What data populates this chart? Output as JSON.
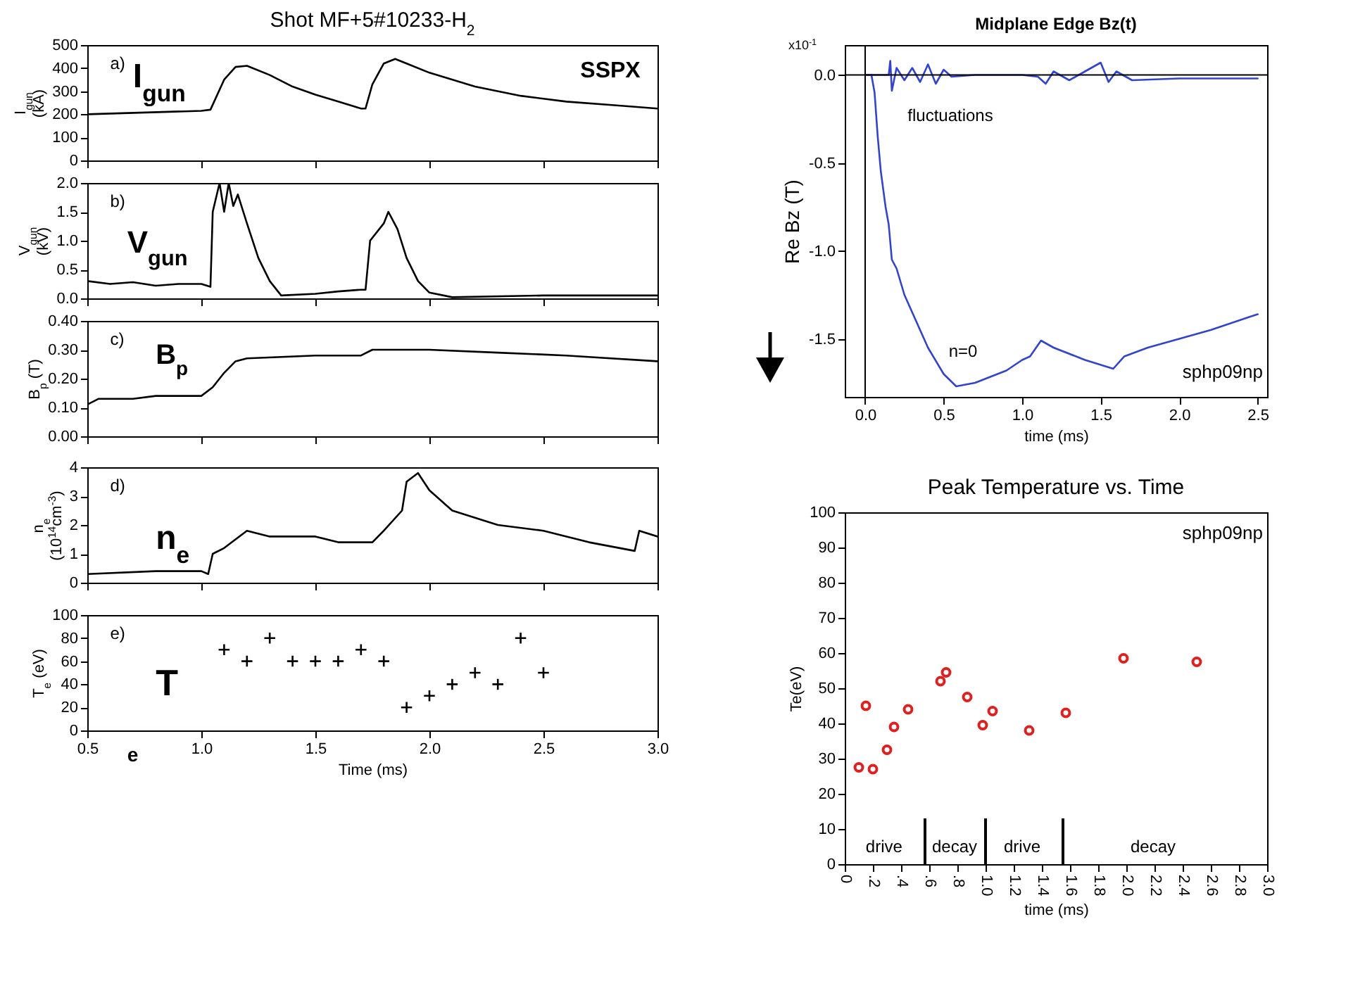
{
  "chart_data": [
    {
      "type": "line",
      "title": "Shot MF+5#10233-H$_{2}$",
      "ylabel": "I$_{gun}$ (kA)",
      "annotations": [
        "a)",
        "I$_{gun}$",
        "SSPX"
      ],
      "xlim": [
        0.5,
        3.0
      ],
      "xticks": [
        0.5,
        1,
        1.5,
        2,
        2.5,
        3
      ],
      "ylim": [
        0,
        500
      ],
      "yticks": [
        0,
        100,
        200,
        300,
        400,
        500
      ],
      "tick_labels": "y",
      "series": [
        {
          "color": "#000000",
          "x": [
            0.5,
            1.0,
            1.04,
            1.1,
            1.15,
            1.2,
            1.3,
            1.4,
            1.5,
            1.6,
            1.7,
            1.72,
            1.75,
            1.8,
            1.85,
            1.9,
            2.0,
            2.2,
            2.4,
            2.6,
            2.8,
            3.0
          ],
          "values": [
            200,
            215,
            220,
            350,
            405,
            410,
            370,
            320,
            285,
            255,
            225,
            225,
            330,
            420,
            440,
            420,
            380,
            320,
            280,
            255,
            240,
            225
          ]
        }
      ]
    },
    {
      "type": "line",
      "ylabel": "V$_{gun}$ (kV)",
      "annotations": [
        "b)",
        "V$_{gun}$"
      ],
      "xlim": [
        0.5,
        3.0
      ],
      "xticks": [
        0.5,
        1,
        1.5,
        2,
        2.5,
        3
      ],
      "ylim": [
        0,
        2
      ],
      "yticks": [
        {
          "value": 0,
          "label": "0.0"
        },
        0.5,
        {
          "value": 1,
          "label": "1.0"
        },
        1.5,
        {
          "value": 2,
          "label": "2.0"
        }
      ],
      "tick_labels": "y",
      "series": [
        {
          "color": "#000000",
          "x": [
            0.5,
            0.6,
            0.7,
            0.8,
            0.9,
            1.0,
            1.04,
            1.05,
            1.08,
            1.1,
            1.12,
            1.14,
            1.16,
            1.2,
            1.25,
            1.3,
            1.35,
            1.5,
            1.6,
            1.7,
            1.72,
            1.74,
            1.8,
            1.82,
            1.86,
            1.9,
            1.95,
            2.0,
            2.1,
            2.5,
            3.0
          ],
          "values": [
            0.3,
            0.25,
            0.28,
            0.22,
            0.25,
            0.25,
            0.2,
            1.5,
            2.0,
            1.5,
            2.0,
            1.6,
            1.8,
            1.3,
            0.7,
            0.3,
            0.05,
            0.08,
            0.12,
            0.15,
            0.15,
            1.0,
            1.3,
            1.5,
            1.2,
            0.7,
            0.3,
            0.1,
            0.02,
            0.05,
            0.05
          ]
        }
      ]
    },
    {
      "type": "line",
      "ylabel": "B$_{p}$ (T)",
      "annotations": [
        "c)",
        "B$_{p}$"
      ],
      "xlim": [
        0.5,
        3.0
      ],
      "xticks": [
        0.5,
        1,
        1.5,
        2,
        2.5,
        3
      ],
      "ylim": [
        0,
        0.4
      ],
      "yticks": [
        {
          "value": 0,
          "label": "0.00"
        },
        {
          "value": 0.1,
          "label": "0.10"
        },
        {
          "value": 0.2,
          "label": "0.20"
        },
        {
          "value": 0.3,
          "label": "0.30"
        },
        {
          "value": 0.4,
          "label": "0.40"
        }
      ],
      "tick_labels": "y",
      "series": [
        {
          "color": "#000000",
          "x": [
            0.5,
            0.55,
            0.7,
            0.8,
            1.0,
            1.05,
            1.1,
            1.15,
            1.2,
            1.5,
            1.7,
            1.75,
            2.0,
            2.3,
            2.6,
            3.0
          ],
          "values": [
            0.11,
            0.13,
            0.13,
            0.14,
            0.14,
            0.17,
            0.22,
            0.26,
            0.27,
            0.28,
            0.28,
            0.3,
            0.3,
            0.29,
            0.28,
            0.26
          ]
        }
      ]
    },
    {
      "type": "line",
      "ylabel": "n$_{e}$ (10$^{14}$cm$^{-3}$)",
      "annotations": [
        "d)",
        "n$_{e}$"
      ],
      "xlim": [
        0.5,
        3.0
      ],
      "xticks": [
        0.5,
        1,
        1.5,
        2,
        2.5,
        3
      ],
      "ylim": [
        0,
        4
      ],
      "yticks": [
        0,
        1,
        2,
        3,
        4
      ],
      "tick_labels": "y",
      "series": [
        {
          "color": "#000000",
          "x": [
            0.5,
            0.8,
            1.0,
            1.03,
            1.05,
            1.1,
            1.2,
            1.3,
            1.5,
            1.6,
            1.75,
            1.8,
            1.88,
            1.9,
            1.95,
            2.0,
            2.1,
            2.3,
            2.5,
            2.7,
            2.9,
            2.92,
            3.0
          ],
          "values": [
            0.3,
            0.4,
            0.4,
            0.3,
            1.0,
            1.2,
            1.8,
            1.6,
            1.6,
            1.4,
            1.4,
            1.8,
            2.5,
            3.5,
            3.8,
            3.2,
            2.5,
            2.0,
            1.8,
            1.4,
            1.1,
            1.8,
            1.6
          ]
        }
      ]
    },
    {
      "type": "scatter",
      "xlabel": "Time (ms)",
      "ylabel": "T$_{e}$ (eV)",
      "annotations": [
        "e)",
        "T",
        "e"
      ],
      "marker": "cross",
      "xlim": [
        0.5,
        3.0
      ],
      "xticks": [
        0.5,
        {
          "value": 1,
          "label": "1.0"
        },
        1.5,
        {
          "value": 2,
          "label": "2.0"
        },
        2.5,
        {
          "value": 3,
          "label": "3.0"
        }
      ],
      "ylim": [
        0,
        100
      ],
      "yticks": [
        0,
        20,
        40,
        60,
        80,
        100
      ],
      "series": [
        {
          "color": "#000000",
          "x": [
            1.1,
            1.2,
            1.3,
            1.4,
            1.5,
            1.6,
            1.7,
            1.8,
            1.9,
            2.0,
            2.1,
            2.2,
            2.3,
            2.4,
            2.5
          ],
          "values": [
            70,
            60,
            80,
            60,
            60,
            60,
            70,
            60,
            20,
            30,
            40,
            50,
            40,
            80,
            50
          ]
        }
      ]
    },
    {
      "type": "line",
      "title": "Midplane Edge Bz(t)",
      "xlabel": "time (ms)",
      "ylabel": "Re Bz (T)",
      "annotations": [
        "x10$^{-1}$",
        "sphp09np",
        "fluctuations",
        "n=0"
      ],
      "xlim": [
        -0.13,
        2.56
      ],
      "xticks": [
        {
          "value": 0,
          "label": "0.0"
        },
        0.5,
        {
          "value": 1,
          "label": "1.0"
        },
        1.5,
        {
          "value": 2,
          "label": "2.0"
        },
        2.5
      ],
      "ylim": [
        -1.83,
        0.17
      ],
      "yticks": [
        {
          "value": -1.5,
          "label": "-1.5"
        },
        {
          "value": -1,
          "label": "-1.0"
        },
        -0.5,
        {
          "value": 0,
          "label": "0.0"
        }
      ],
      "ref_lines": [
        {
          "axis": "x",
          "value": 0
        },
        {
          "axis": "y",
          "value": 0
        }
      ],
      "series": [
        {
          "color": "#3344cc",
          "x": [
            0,
            0.04,
            0.06,
            0.08,
            0.1,
            0.13,
            0.15,
            0.17,
            0.2,
            0.25,
            0.3,
            0.4,
            0.5,
            0.58,
            0.7,
            0.9,
            1.0,
            1.05,
            1.12,
            1.2,
            1.4,
            1.58,
            1.65,
            1.8,
            2.0,
            2.2,
            2.5
          ],
          "values": [
            0,
            0,
            -0.1,
            -0.35,
            -0.55,
            -0.75,
            -0.85,
            -1.05,
            -1.1,
            -1.25,
            -1.35,
            -1.55,
            -1.7,
            -1.77,
            -1.75,
            -1.68,
            -1.62,
            -1.6,
            -1.51,
            -1.55,
            -1.62,
            -1.67,
            -1.6,
            -1.55,
            -1.5,
            -1.45,
            -1.36
          ]
        },
        {
          "color": "#3344cc",
          "x": [
            0,
            0.15,
            0.16,
            0.17,
            0.2,
            0.25,
            0.3,
            0.35,
            0.4,
            0.45,
            0.5,
            0.55,
            0.7,
            1.0,
            1.1,
            1.15,
            1.2,
            1.3,
            1.4,
            1.5,
            1.55,
            1.6,
            1.7,
            2.0,
            2.5
          ],
          "values": [
            0,
            0,
            0.08,
            -0.09,
            0.04,
            -0.03,
            0.04,
            -0.04,
            0.06,
            -0.05,
            0.03,
            -0.01,
            0,
            0,
            -0.01,
            -0.05,
            0.02,
            -0.03,
            0.02,
            0.07,
            -0.04,
            0.02,
            -0.03,
            -0.02,
            -0.02
          ]
        }
      ]
    },
    {
      "type": "scatter",
      "title": "Peak Temperature vs. Time",
      "xlabel": "time (ms)",
      "ylabel": "Te(eV)",
      "marker": "circle",
      "annotations": [
        "sphp09np",
        "drive",
        "decay",
        "drive",
        "decay"
      ],
      "xlim": [
        0,
        3.0
      ],
      "xticks": [
        0,
        {
          "value": 0.2,
          "label": ".2"
        },
        {
          "value": 0.4,
          "label": ".4"
        },
        {
          "value": 0.6,
          "label": ".6"
        },
        {
          "value": 0.8,
          "label": ".8"
        },
        {
          "value": 1,
          "label": "1.0"
        },
        1.2,
        1.4,
        1.6,
        1.8,
        {
          "value": 2,
          "label": "2.0"
        },
        2.2,
        2.4,
        2.6,
        2.8,
        {
          "value": 3,
          "label": "3.0"
        }
      ],
      "ylim": [
        0,
        100
      ],
      "yticks": [
        0,
        10,
        20,
        30,
        40,
        50,
        60,
        70,
        80,
        90,
        100
      ],
      "ref_lines": [
        {
          "axis": "x",
          "value": 0.57
        },
        {
          "axis": "x",
          "value": 1.0
        },
        {
          "axis": "x",
          "value": 1.55
        }
      ],
      "series": [
        {
          "color": "#e02020",
          "x": [
            0.1,
            0.15,
            0.2,
            0.3,
            0.35,
            0.45,
            0.68,
            0.72,
            0.87,
            0.98,
            1.05,
            1.31,
            1.57,
            1.98,
            2.5
          ],
          "values": [
            27.5,
            45,
            27,
            32.5,
            39,
            44,
            52,
            54.5,
            47.5,
            39.5,
            43.5,
            38,
            43,
            58.5,
            57.5
          ]
        }
      ]
    }
  ]
}
